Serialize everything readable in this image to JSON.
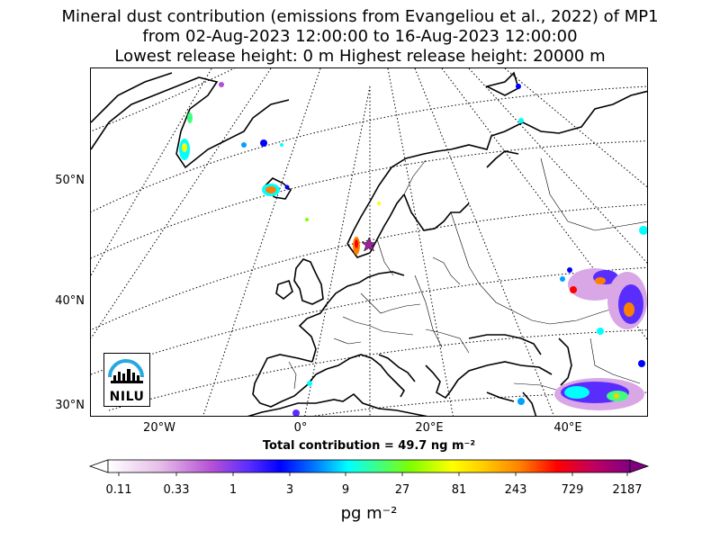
{
  "title": {
    "line1": "Mineral dust contribution (emissions from Evangeliou et al., 2022) of MP1",
    "line2": "from 02-Aug-2023 12:00:00 to 16-Aug-2023 12:00:00",
    "line3": "Lowest release height: 0 m      Highest release height: 20000 m"
  },
  "map": {
    "lat_labels": [
      "50°N",
      "40°N",
      "30°N"
    ],
    "lon_labels": [
      "20°W",
      "0°",
      "20°E",
      "40°E"
    ],
    "release_site": "star-marker"
  },
  "logo": {
    "text": "NILU",
    "icon": "nilu-logo-icon"
  },
  "total": "Total contribution = 49.7 ng m⁻²",
  "colorbar": {
    "ticks": [
      "0.11",
      "0.33",
      "1",
      "3",
      "9",
      "27",
      "81",
      "243",
      "729",
      "2187"
    ],
    "unit": "pg m⁻²",
    "colors": [
      "#ffffff",
      "#d9a6e6",
      "#b54fd6",
      "#5a2dff",
      "#0000ff",
      "#00a0ff",
      "#00ffff",
      "#40ff80",
      "#80ff00",
      "#ffff00",
      "#ffcc00",
      "#ff8000",
      "#ff0000",
      "#c00060",
      "#800080"
    ]
  }
}
